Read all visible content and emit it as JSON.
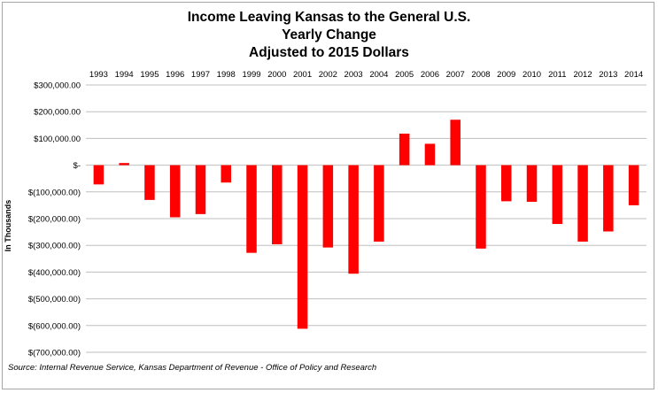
{
  "chart_data": {
    "type": "bar",
    "title_lines": [
      "Income Leaving Kansas to the General U.S.",
      "Yearly Change",
      "Adjusted to 2015 Dollars"
    ],
    "ylabel": "In Thousands",
    "xlabel": "",
    "categories": [
      "1993",
      "1994",
      "1995",
      "1996",
      "1997",
      "1998",
      "1999",
      "2000",
      "2001",
      "2002",
      "2003",
      "2004",
      "2005",
      "2006",
      "2007",
      "2008",
      "2009",
      "2010",
      "2011",
      "2012",
      "2013",
      "2014"
    ],
    "values": [
      -72000,
      8000,
      -130000,
      -195000,
      -183000,
      -65000,
      -328000,
      -296000,
      -612000,
      -308000,
      -406000,
      -286000,
      118000,
      80000,
      170000,
      -312000,
      -135000,
      -137000,
      -220000,
      -286000,
      -248000,
      -150000
    ],
    "ylim": [
      -700000,
      300000
    ],
    "ytick_values": [
      300000,
      200000,
      100000,
      0,
      -100000,
      -200000,
      -300000,
      -400000,
      -500000,
      -600000,
      -700000
    ],
    "ytick_labels": [
      "$300,000.00",
      "$200,000.00",
      "$100,000.00",
      "$-",
      "$(100,000.00)",
      "$(200,000.00)",
      "$(300,000.00)",
      "$(400,000.00)",
      "$(500,000.00)",
      "$(600,000.00)",
      "$(700,000.00)"
    ],
    "category_labels_position": "top",
    "grid": true,
    "bar_color": "#ff0000"
  },
  "source_note": "Source: Internal Revenue Service, Kansas Department of Revenue - Office of Policy and Research"
}
